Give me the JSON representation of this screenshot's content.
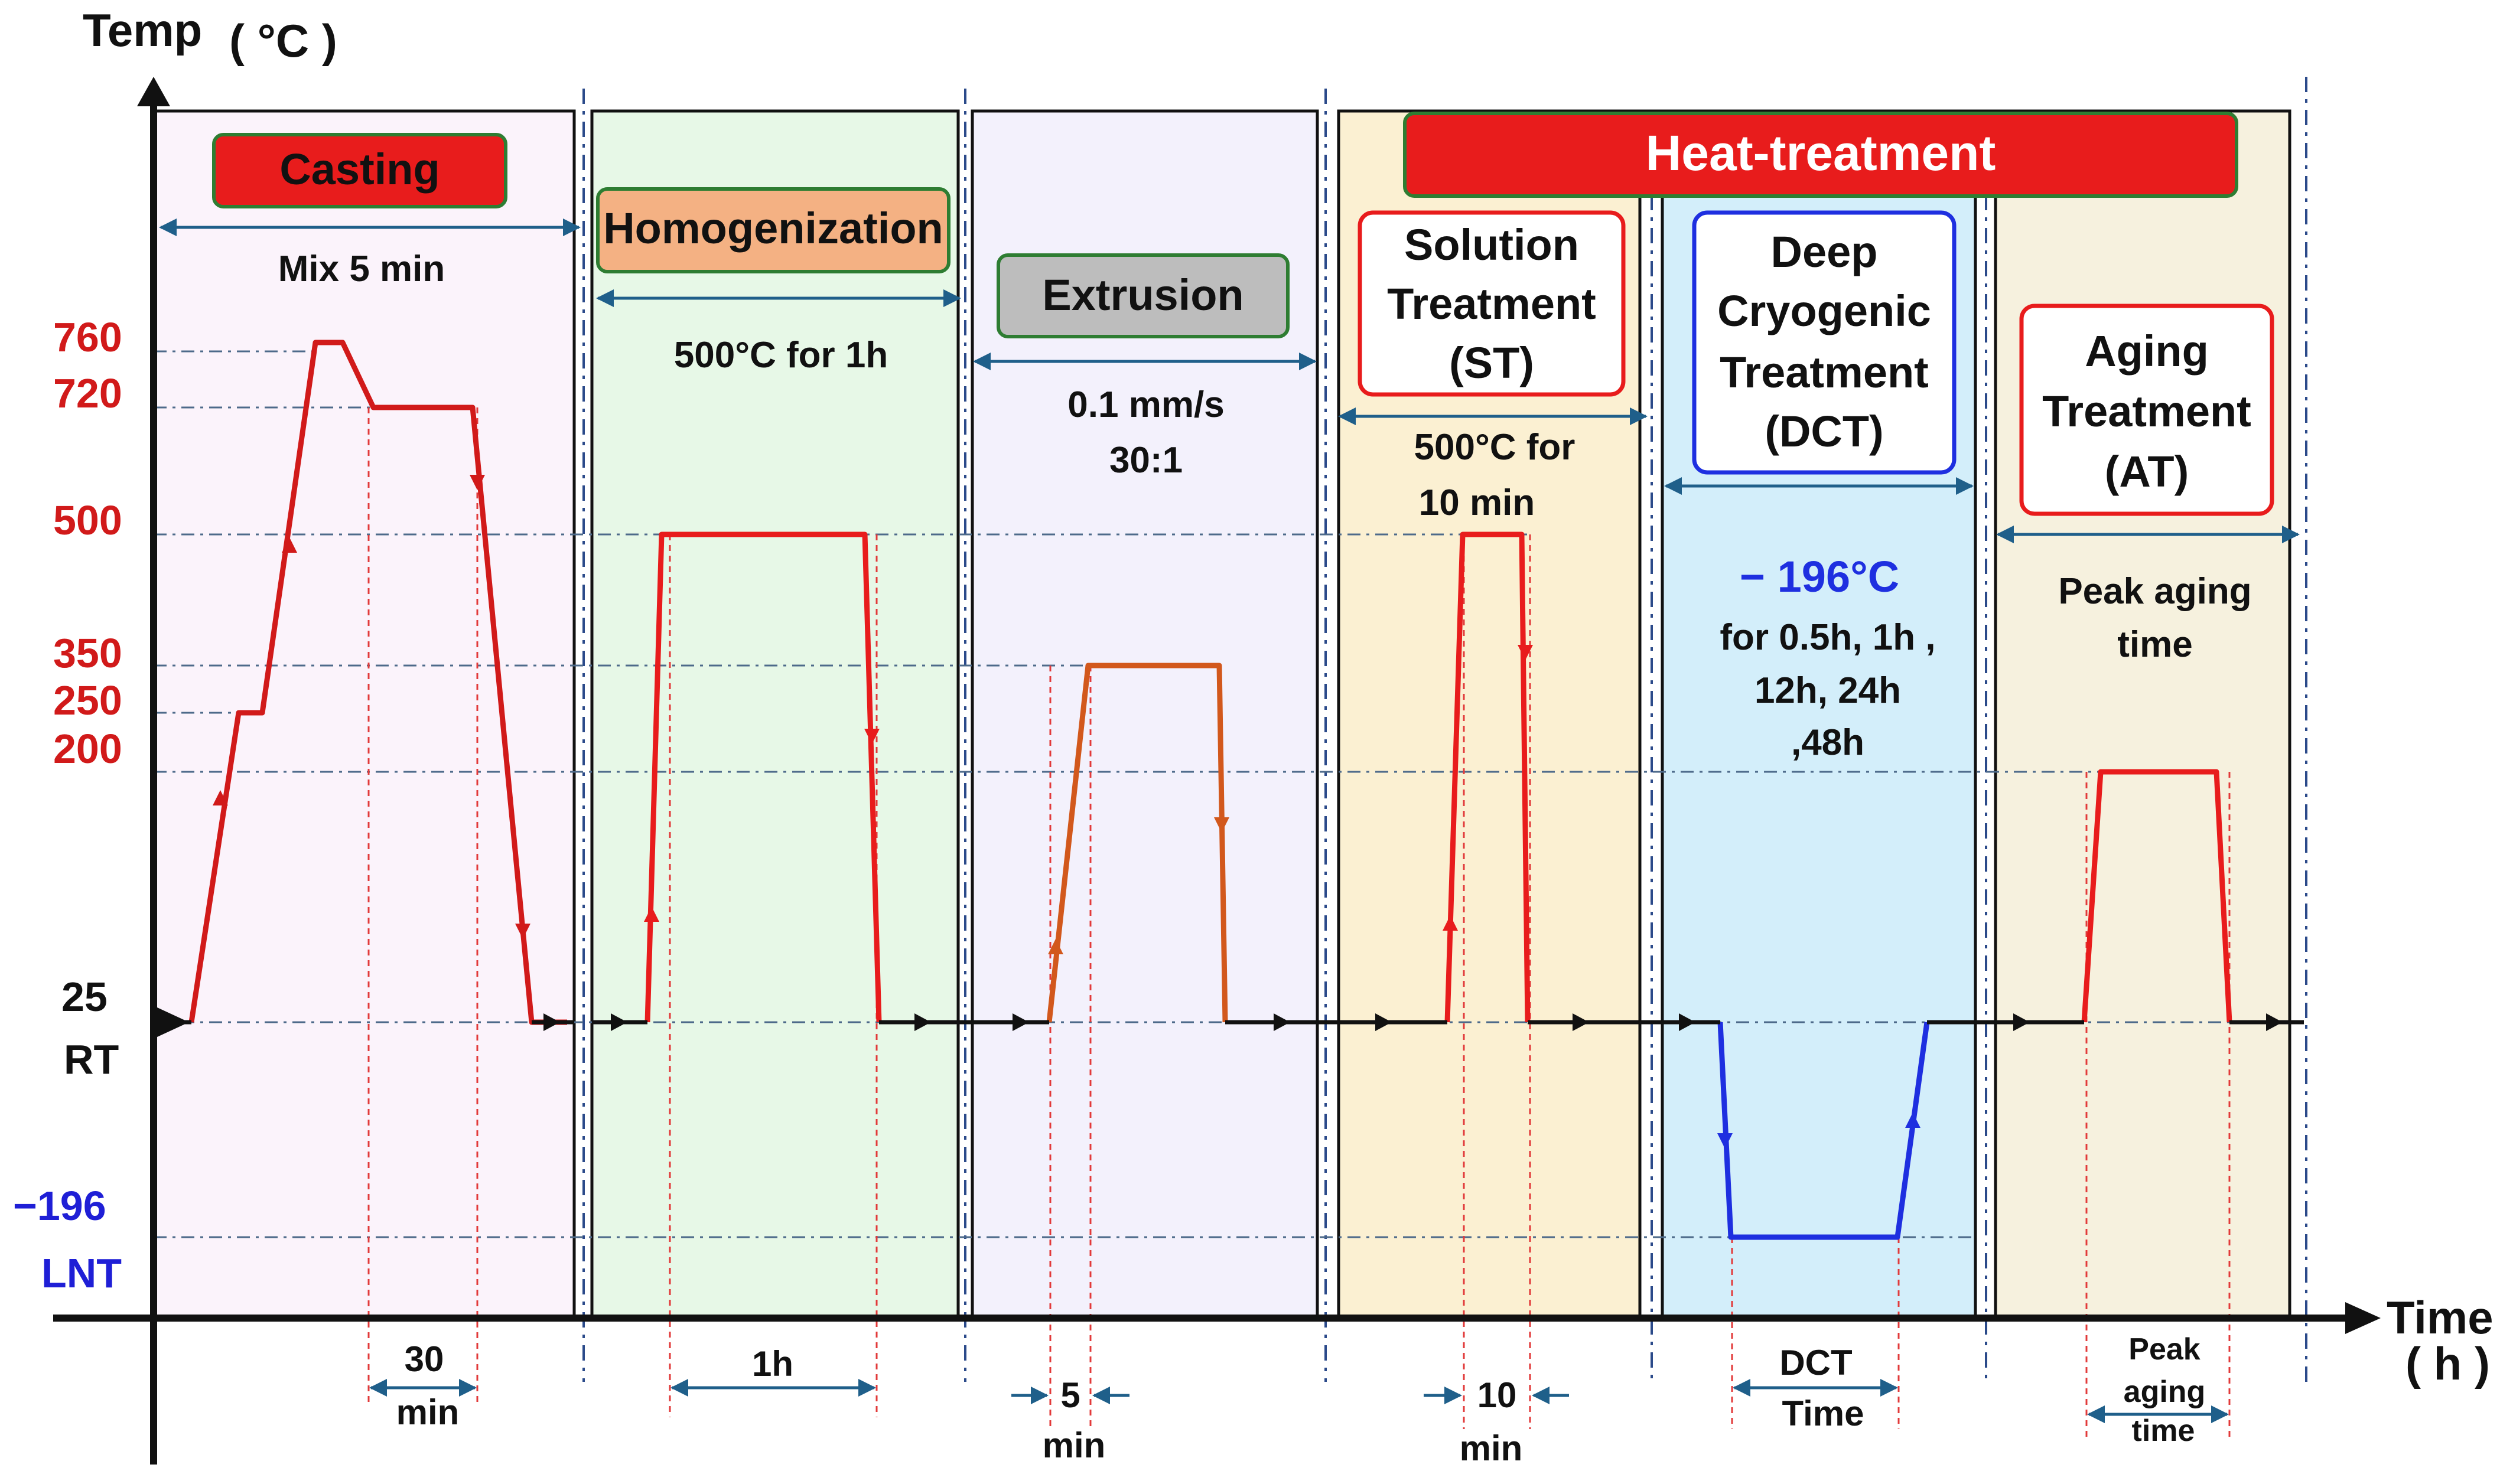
{
  "axes": {
    "y_title": "Temp",
    "y_unit": "( °C )",
    "x_title": "Time",
    "x_unit": "( h )"
  },
  "y_ticks": [
    {
      "label": "760",
      "color": "#d11a1a"
    },
    {
      "label": "720",
      "color": "#d11a1a"
    },
    {
      "label": "500",
      "color": "#d11a1a"
    },
    {
      "label": "350",
      "color": "#d11a1a"
    },
    {
      "label": "250",
      "color": "#d11a1a"
    },
    {
      "label": "200",
      "color": "#d11a1a"
    },
    {
      "label": "25",
      "color": "#111111"
    },
    {
      "label": "RT",
      "color": "#111111"
    },
    {
      "label": "−196",
      "color": "#1f1fd6"
    },
    {
      "label": "LNT",
      "color": "#1f1fd6"
    }
  ],
  "stages": {
    "casting": {
      "label": "Casting",
      "note": "Mix 5 min",
      "duration": [
        "30",
        "min"
      ],
      "profile_temps_c": [
        25,
        200,
        250,
        500,
        760,
        720,
        500,
        200,
        25
      ]
    },
    "homogenization": {
      "label": "Homogenization",
      "note": "500°C for 1h",
      "duration": [
        "1h"
      ],
      "profile_temps_c": [
        25,
        500,
        500,
        25
      ]
    },
    "extrusion": {
      "label": "Extrusion",
      "note_lines": [
        "0.1 mm/s",
        "30:1"
      ],
      "duration": [
        "5",
        "min"
      ],
      "profile_temps_c": [
        25,
        350,
        350,
        25
      ]
    },
    "heat_treatment": {
      "label": "Heat-treatment",
      "solution": {
        "label_lines": [
          "Solution",
          "Treatment",
          "(ST)"
        ],
        "note_lines": [
          "500°C for",
          "10 min"
        ],
        "duration": [
          "10",
          "min"
        ],
        "profile_temps_c": [
          25,
          500,
          500,
          25
        ]
      },
      "dct": {
        "label_lines": [
          "Deep",
          "Cryogenic",
          "Treatment",
          "(DCT)"
        ],
        "temp_label": "− 196°C",
        "note_lines": [
          "for 0.5h, 1h ,",
          "12h, 24h",
          ",48h"
        ],
        "duration": [
          "DCT",
          "Time"
        ],
        "profile_temps_c": [
          25,
          -196,
          -196,
          25
        ]
      },
      "aging": {
        "label_lines": [
          "Aging",
          "Treatment",
          "(AT)"
        ],
        "note_lines": [
          "Peak aging",
          "time"
        ],
        "duration": [
          "Peak",
          "aging",
          "time"
        ],
        "profile_temps_c": [
          25,
          200,
          200,
          25
        ]
      }
    }
  },
  "colors": {
    "heat": "#e81c1c",
    "extrusion": "#d2581c",
    "cryo": "#1e2fe0",
    "axis": "#111111",
    "guide": "#1f5f8a"
  }
}
